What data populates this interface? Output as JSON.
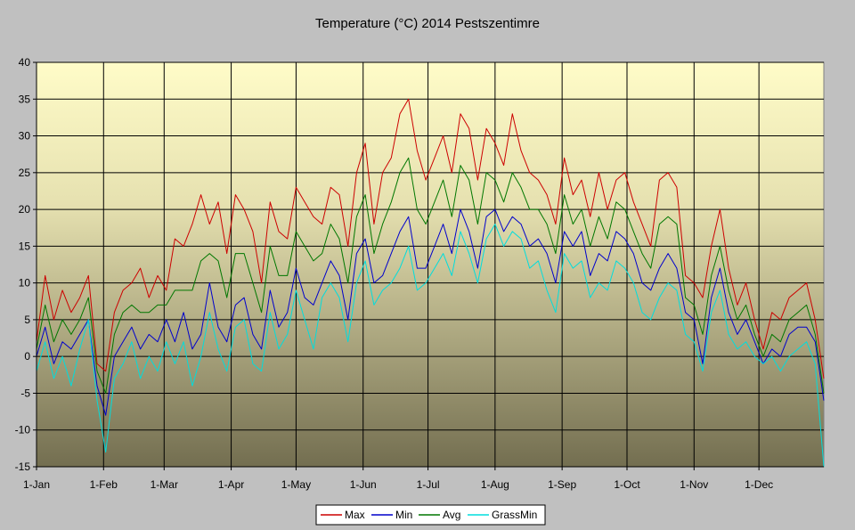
{
  "chart_data": {
    "type": "line",
    "title": "Temperature (°C) 2014 Pestszentimre",
    "xlabel": "",
    "ylabel": "",
    "ylim": [
      -15,
      40
    ],
    "y_ticks": [
      -15,
      -10,
      -5,
      0,
      5,
      10,
      15,
      20,
      25,
      30,
      35,
      40
    ],
    "xlim": [
      "2014-01-01",
      "2014-12-31"
    ],
    "x_ticks": [
      {
        "date": "2014-01-01",
        "label": "1-Jan"
      },
      {
        "date": "2014-02-01",
        "label": "1-Feb"
      },
      {
        "date": "2014-03-01",
        "label": "1-Mar"
      },
      {
        "date": "2014-04-01",
        "label": "1-Apr"
      },
      {
        "date": "2014-05-01",
        "label": "1-May"
      },
      {
        "date": "2014-06-01",
        "label": "1-Jun"
      },
      {
        "date": "2014-07-01",
        "label": "1-Jul"
      },
      {
        "date": "2014-08-01",
        "label": "1-Aug"
      },
      {
        "date": "2014-09-01",
        "label": "1-Sep"
      },
      {
        "date": "2014-10-01",
        "label": "1-Oct"
      },
      {
        "date": "2014-11-01",
        "label": "1-Nov"
      },
      {
        "date": "2014-12-01",
        "label": "1-Dec"
      }
    ],
    "grid": true,
    "legend_position": "bottom",
    "series": [
      {
        "name": "Max",
        "color": "#cc0000",
        "x": [
          "2014-01-01",
          "2014-01-05",
          "2014-01-09",
          "2014-01-13",
          "2014-01-17",
          "2014-01-21",
          "2014-01-25",
          "2014-01-29",
          "2014-02-02",
          "2014-02-06",
          "2014-02-10",
          "2014-02-14",
          "2014-02-18",
          "2014-02-22",
          "2014-02-26",
          "2014-03-02",
          "2014-03-06",
          "2014-03-10",
          "2014-03-14",
          "2014-03-18",
          "2014-03-22",
          "2014-03-26",
          "2014-03-30",
          "2014-04-03",
          "2014-04-07",
          "2014-04-11",
          "2014-04-15",
          "2014-04-19",
          "2014-04-23",
          "2014-04-27",
          "2014-05-01",
          "2014-05-05",
          "2014-05-09",
          "2014-05-13",
          "2014-05-17",
          "2014-05-21",
          "2014-05-25",
          "2014-05-29",
          "2014-06-02",
          "2014-06-06",
          "2014-06-10",
          "2014-06-14",
          "2014-06-18",
          "2014-06-22",
          "2014-06-26",
          "2014-06-30",
          "2014-07-04",
          "2014-07-08",
          "2014-07-12",
          "2014-07-16",
          "2014-07-20",
          "2014-07-24",
          "2014-07-28",
          "2014-08-01",
          "2014-08-05",
          "2014-08-09",
          "2014-08-13",
          "2014-08-17",
          "2014-08-21",
          "2014-08-25",
          "2014-08-29",
          "2014-09-02",
          "2014-09-06",
          "2014-09-10",
          "2014-09-14",
          "2014-09-18",
          "2014-09-22",
          "2014-09-26",
          "2014-09-30",
          "2014-10-04",
          "2014-10-08",
          "2014-10-12",
          "2014-10-16",
          "2014-10-20",
          "2014-10-24",
          "2014-10-28",
          "2014-11-01",
          "2014-11-05",
          "2014-11-09",
          "2014-11-13",
          "2014-11-17",
          "2014-11-21",
          "2014-11-25",
          "2014-11-29",
          "2014-12-03",
          "2014-12-07",
          "2014-12-11",
          "2014-12-15",
          "2014-12-19",
          "2014-12-23",
          "2014-12-27",
          "2014-12-31"
        ],
        "values": [
          2,
          11,
          5,
          9,
          6,
          8,
          11,
          -1,
          -2,
          6,
          9,
          10,
          12,
          8,
          11,
          9,
          16,
          15,
          18,
          22,
          18,
          21,
          14,
          22,
          20,
          17,
          10,
          21,
          17,
          16,
          23,
          21,
          19,
          18,
          23,
          22,
          15,
          25,
          29,
          18,
          25,
          27,
          33,
          35,
          28,
          24,
          27,
          30,
          25,
          33,
          31,
          24,
          31,
          29,
          26,
          33,
          28,
          25,
          24,
          22,
          18,
          27,
          22,
          24,
          19,
          25,
          20,
          24,
          25,
          21,
          18,
          15,
          24,
          25,
          23,
          11,
          10,
          8,
          15,
          20,
          12,
          7,
          10,
          5,
          1,
          6,
          5,
          8,
          9,
          10,
          5,
          -3
        ]
      },
      {
        "name": "Min",
        "color": "#0000cc",
        "x": [
          "2014-01-01",
          "2014-01-05",
          "2014-01-09",
          "2014-01-13",
          "2014-01-17",
          "2014-01-21",
          "2014-01-25",
          "2014-01-29",
          "2014-02-02",
          "2014-02-06",
          "2014-02-10",
          "2014-02-14",
          "2014-02-18",
          "2014-02-22",
          "2014-02-26",
          "2014-03-02",
          "2014-03-06",
          "2014-03-10",
          "2014-03-14",
          "2014-03-18",
          "2014-03-22",
          "2014-03-26",
          "2014-03-30",
          "2014-04-03",
          "2014-04-07",
          "2014-04-11",
          "2014-04-15",
          "2014-04-19",
          "2014-04-23",
          "2014-04-27",
          "2014-05-01",
          "2014-05-05",
          "2014-05-09",
          "2014-05-13",
          "2014-05-17",
          "2014-05-21",
          "2014-05-25",
          "2014-05-29",
          "2014-06-02",
          "2014-06-06",
          "2014-06-10",
          "2014-06-14",
          "2014-06-18",
          "2014-06-22",
          "2014-06-26",
          "2014-06-30",
          "2014-07-04",
          "2014-07-08",
          "2014-07-12",
          "2014-07-16",
          "2014-07-20",
          "2014-07-24",
          "2014-07-28",
          "2014-08-01",
          "2014-08-05",
          "2014-08-09",
          "2014-08-13",
          "2014-08-17",
          "2014-08-21",
          "2014-08-25",
          "2014-08-29",
          "2014-09-02",
          "2014-09-06",
          "2014-09-10",
          "2014-09-14",
          "2014-09-18",
          "2014-09-22",
          "2014-09-26",
          "2014-09-30",
          "2014-10-04",
          "2014-10-08",
          "2014-10-12",
          "2014-10-16",
          "2014-10-20",
          "2014-10-24",
          "2014-10-28",
          "2014-11-01",
          "2014-11-05",
          "2014-11-09",
          "2014-11-13",
          "2014-11-17",
          "2014-11-21",
          "2014-11-25",
          "2014-11-29",
          "2014-12-03",
          "2014-12-07",
          "2014-12-11",
          "2014-12-15",
          "2014-12-19",
          "2014-12-23",
          "2014-12-27",
          "2014-12-31"
        ],
        "values": [
          0,
          4,
          -1,
          2,
          1,
          3,
          5,
          -4,
          -8,
          0,
          2,
          4,
          1,
          3,
          2,
          5,
          2,
          6,
          1,
          3,
          10,
          4,
          2,
          7,
          8,
          3,
          1,
          9,
          4,
          6,
          12,
          8,
          7,
          10,
          13,
          11,
          5,
          14,
          16,
          10,
          11,
          14,
          17,
          19,
          12,
          12,
          15,
          18,
          14,
          20,
          17,
          12,
          19,
          20,
          17,
          19,
          18,
          15,
          16,
          14,
          10,
          17,
          15,
          17,
          11,
          14,
          13,
          17,
          16,
          14,
          10,
          9,
          12,
          14,
          12,
          6,
          5,
          -1,
          8,
          12,
          6,
          3,
          5,
          2,
          -1,
          1,
          0,
          3,
          4,
          4,
          2,
          -6
        ]
      },
      {
        "name": "Avg",
        "color": "#007700",
        "x": [
          "2014-01-01",
          "2014-01-05",
          "2014-01-09",
          "2014-01-13",
          "2014-01-17",
          "2014-01-21",
          "2014-01-25",
          "2014-01-29",
          "2014-02-02",
          "2014-02-06",
          "2014-02-10",
          "2014-02-14",
          "2014-02-18",
          "2014-02-22",
          "2014-02-26",
          "2014-03-02",
          "2014-03-06",
          "2014-03-10",
          "2014-03-14",
          "2014-03-18",
          "2014-03-22",
          "2014-03-26",
          "2014-03-30",
          "2014-04-03",
          "2014-04-07",
          "2014-04-11",
          "2014-04-15",
          "2014-04-19",
          "2014-04-23",
          "2014-04-27",
          "2014-05-01",
          "2014-05-05",
          "2014-05-09",
          "2014-05-13",
          "2014-05-17",
          "2014-05-21",
          "2014-05-25",
          "2014-05-29",
          "2014-06-02",
          "2014-06-06",
          "2014-06-10",
          "2014-06-14",
          "2014-06-18",
          "2014-06-22",
          "2014-06-26",
          "2014-06-30",
          "2014-07-04",
          "2014-07-08",
          "2014-07-12",
          "2014-07-16",
          "2014-07-20",
          "2014-07-24",
          "2014-07-28",
          "2014-08-01",
          "2014-08-05",
          "2014-08-09",
          "2014-08-13",
          "2014-08-17",
          "2014-08-21",
          "2014-08-25",
          "2014-08-29",
          "2014-09-02",
          "2014-09-06",
          "2014-09-10",
          "2014-09-14",
          "2014-09-18",
          "2014-09-22",
          "2014-09-26",
          "2014-09-30",
          "2014-10-04",
          "2014-10-08",
          "2014-10-12",
          "2014-10-16",
          "2014-10-20",
          "2014-10-24",
          "2014-10-28",
          "2014-11-01",
          "2014-11-05",
          "2014-11-09",
          "2014-11-13",
          "2014-11-17",
          "2014-11-21",
          "2014-11-25",
          "2014-11-29",
          "2014-12-03",
          "2014-12-07",
          "2014-12-11",
          "2014-12-15",
          "2014-12-19",
          "2014-12-23",
          "2014-12-27",
          "2014-12-31"
        ],
        "values": [
          1,
          7,
          2,
          5,
          3,
          5,
          8,
          -2,
          -5,
          3,
          6,
          7,
          6,
          6,
          7,
          7,
          9,
          9,
          9,
          13,
          14,
          13,
          8,
          14,
          14,
          10,
          6,
          15,
          11,
          11,
          17,
          15,
          13,
          14,
          18,
          16,
          10,
          19,
          22,
          14,
          18,
          21,
          25,
          27,
          20,
          18,
          21,
          24,
          19,
          26,
          24,
          18,
          25,
          24,
          21,
          25,
          23,
          20,
          20,
          18,
          14,
          22,
          18,
          20,
          15,
          19,
          16,
          21,
          20,
          17,
          14,
          12,
          18,
          19,
          18,
          8,
          7,
          3,
          11,
          15,
          9,
          5,
          7,
          3,
          0,
          3,
          2,
          5,
          6,
          7,
          3,
          -5
        ]
      },
      {
        "name": "GrassMin",
        "color": "#00dddd",
        "x": [
          "2014-01-01",
          "2014-01-05",
          "2014-01-09",
          "2014-01-13",
          "2014-01-17",
          "2014-01-21",
          "2014-01-25",
          "2014-01-29",
          "2014-02-02",
          "2014-02-06",
          "2014-02-10",
          "2014-02-14",
          "2014-02-18",
          "2014-02-22",
          "2014-02-26",
          "2014-03-02",
          "2014-03-06",
          "2014-03-10",
          "2014-03-14",
          "2014-03-18",
          "2014-03-22",
          "2014-03-26",
          "2014-03-30",
          "2014-04-03",
          "2014-04-07",
          "2014-04-11",
          "2014-04-15",
          "2014-04-19",
          "2014-04-23",
          "2014-04-27",
          "2014-05-01",
          "2014-05-05",
          "2014-05-09",
          "2014-05-13",
          "2014-05-17",
          "2014-05-21",
          "2014-05-25",
          "2014-05-29",
          "2014-06-02",
          "2014-06-06",
          "2014-06-10",
          "2014-06-14",
          "2014-06-18",
          "2014-06-22",
          "2014-06-26",
          "2014-06-30",
          "2014-07-04",
          "2014-07-08",
          "2014-07-12",
          "2014-07-16",
          "2014-07-20",
          "2014-07-24",
          "2014-07-28",
          "2014-08-01",
          "2014-08-05",
          "2014-08-09",
          "2014-08-13",
          "2014-08-17",
          "2014-08-21",
          "2014-08-25",
          "2014-08-29",
          "2014-09-02",
          "2014-09-06",
          "2014-09-10",
          "2014-09-14",
          "2014-09-18",
          "2014-09-22",
          "2014-09-26",
          "2014-09-30",
          "2014-10-04",
          "2014-10-08",
          "2014-10-12",
          "2014-10-16",
          "2014-10-20",
          "2014-10-24",
          "2014-10-28",
          "2014-11-01",
          "2014-11-05",
          "2014-11-09",
          "2014-11-13",
          "2014-11-17",
          "2014-11-21",
          "2014-11-25",
          "2014-11-29",
          "2014-12-03",
          "2014-12-07",
          "2014-12-11",
          "2014-12-15",
          "2014-12-19",
          "2014-12-23",
          "2014-12-27",
          "2014-12-31"
        ],
        "values": [
          -2,
          2,
          -3,
          0,
          -4,
          1,
          5,
          -6,
          -13,
          -3,
          -1,
          2,
          -3,
          0,
          -2,
          2,
          -1,
          2,
          -4,
          0,
          6,
          1,
          -2,
          4,
          5,
          -1,
          -2,
          6,
          1,
          3,
          9,
          5,
          1,
          8,
          10,
          8,
          2,
          10,
          13,
          7,
          9,
          10,
          12,
          15,
          9,
          10,
          12,
          14,
          11,
          17,
          14,
          10,
          16,
          18,
          15,
          17,
          16,
          12,
          13,
          9,
          6,
          14,
          12,
          13,
          8,
          10,
          9,
          13,
          12,
          10,
          6,
          5,
          8,
          10,
          9,
          3,
          2,
          -2,
          6,
          9,
          3,
          1,
          2,
          0,
          -1,
          0,
          -2,
          0,
          1,
          2,
          -1,
          -15
        ]
      }
    ]
  }
}
